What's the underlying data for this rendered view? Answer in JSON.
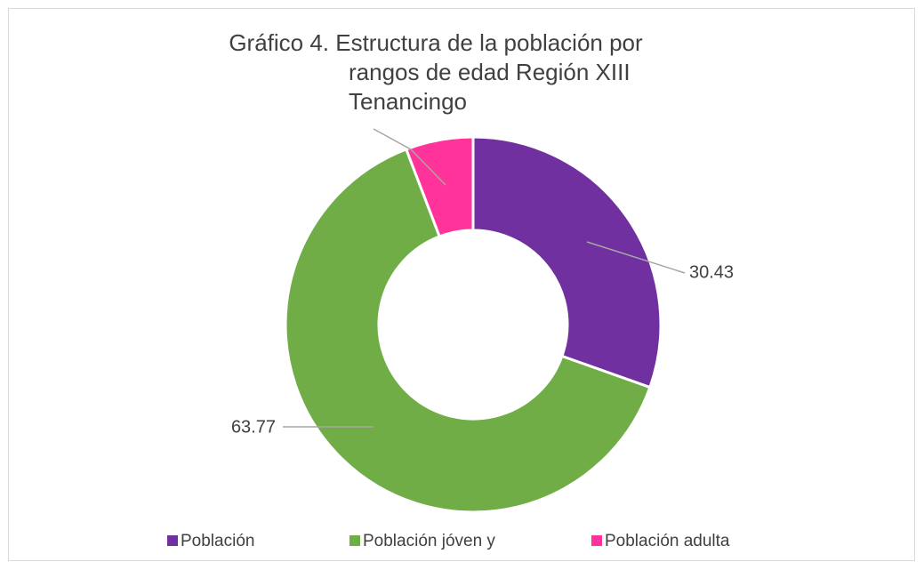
{
  "chart_data": {
    "type": "pie",
    "donut": true,
    "title": [
      "Gráfico 4. Estructura de la población por",
      "rangos de edad Región XIII",
      "Tenancingo"
    ],
    "categories": [
      "Población",
      "Población jóven y",
      "Población adulta"
    ],
    "values": [
      30.43,
      63.77,
      5.8
    ],
    "colors": [
      "#7030a0",
      "#70ad47",
      "#ff3399"
    ],
    "value_labels": [
      "30.43",
      "63.77",
      null
    ],
    "legend": "bottom"
  }
}
